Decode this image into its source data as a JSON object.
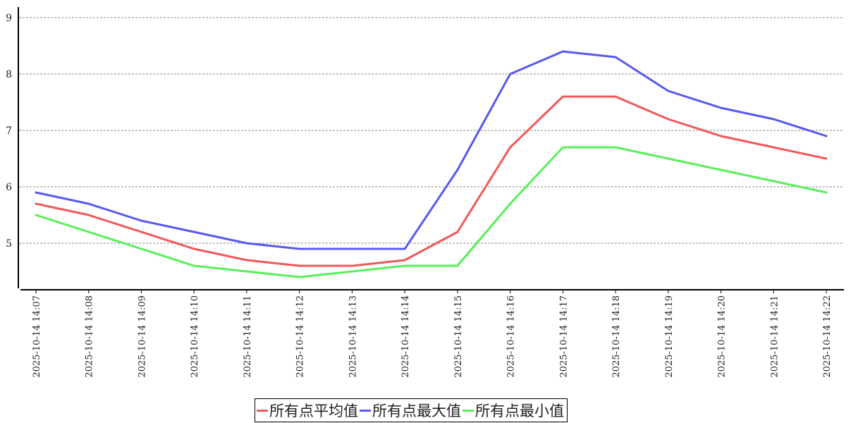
{
  "chart_data": {
    "type": "line",
    "title": "",
    "xlabel": "",
    "ylabel": "",
    "ylim": [
      4.2,
      9.2
    ],
    "yticks": [
      5,
      6,
      7,
      8,
      9
    ],
    "grid": "horizontal dashed",
    "legend_position": "bottom",
    "categories": [
      "2025-10-14 14:07",
      "2025-10-14 14:08",
      "2025-10-14 14:09",
      "2025-10-14 14:10",
      "2025-10-14 14:11",
      "2025-10-14 14:12",
      "2025-10-14 14:13",
      "2025-10-14 14:14",
      "2025-10-14 14:15",
      "2025-10-14 14:16",
      "2025-10-14 14:17",
      "2025-10-14 14:18",
      "2025-10-14 14:19",
      "2025-10-14 14:20",
      "2025-10-14 14:21",
      "2025-10-14 14:22"
    ],
    "series": [
      {
        "name": "所有点平均值",
        "color": "#f05858",
        "values": [
          5.7,
          5.5,
          5.2,
          4.9,
          4.7,
          4.6,
          4.6,
          4.7,
          5.2,
          6.7,
          7.6,
          7.6,
          7.2,
          6.9,
          6.7,
          6.5
        ]
      },
      {
        "name": "所有点最大值",
        "color": "#5858f0",
        "values": [
          5.9,
          5.7,
          5.4,
          5.2,
          5.0,
          4.9,
          4.9,
          4.9,
          6.3,
          8.0,
          8.4,
          8.3,
          7.7,
          7.4,
          7.2,
          6.9
        ]
      },
      {
        "name": "所有点最小值",
        "color": "#58f058",
        "values": [
          5.5,
          5.2,
          4.9,
          4.6,
          4.5,
          4.4,
          4.5,
          4.6,
          4.6,
          5.7,
          6.7,
          6.7,
          6.5,
          6.3,
          6.1,
          5.9
        ]
      }
    ]
  }
}
